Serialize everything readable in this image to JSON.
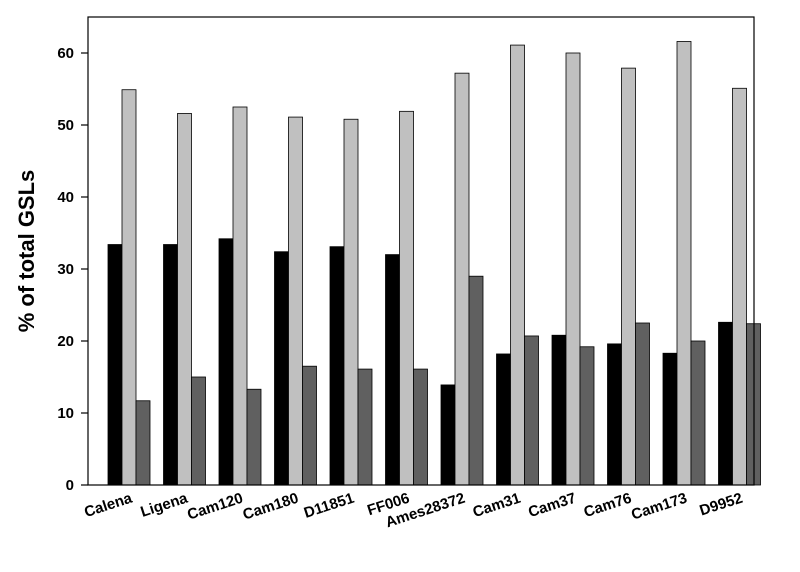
{
  "chart_data": {
    "type": "bar",
    "title": "",
    "xlabel": "",
    "ylabel": "% of total GSLs",
    "ylim": [
      0,
      65
    ],
    "yticks": [
      0,
      10,
      20,
      30,
      40,
      50,
      60
    ],
    "grid": false,
    "legend": "none",
    "categories": [
      "Calena",
      "Ligena",
      "Cam120",
      "Cam180",
      "D11851",
      "FF006",
      "Ames28372",
      "Cam31",
      "Cam37",
      "Cam76",
      "Cam173",
      "D9952"
    ],
    "series": [
      {
        "color": "#000000",
        "values": [
          33.4,
          33.4,
          34.2,
          32.4,
          33.1,
          32.0,
          13.9,
          18.2,
          20.8,
          19.6,
          18.3,
          22.6
        ]
      },
      {
        "color": "#c0c0c0",
        "values": [
          54.9,
          51.6,
          52.5,
          51.1,
          50.8,
          51.9,
          57.2,
          61.1,
          60.0,
          57.9,
          61.6,
          55.1
        ]
      },
      {
        "color": "#606060",
        "values": [
          11.7,
          15.0,
          13.3,
          16.5,
          16.1,
          16.1,
          29.0,
          20.7,
          19.2,
          22.5,
          20.0,
          22.4
        ]
      }
    ]
  }
}
